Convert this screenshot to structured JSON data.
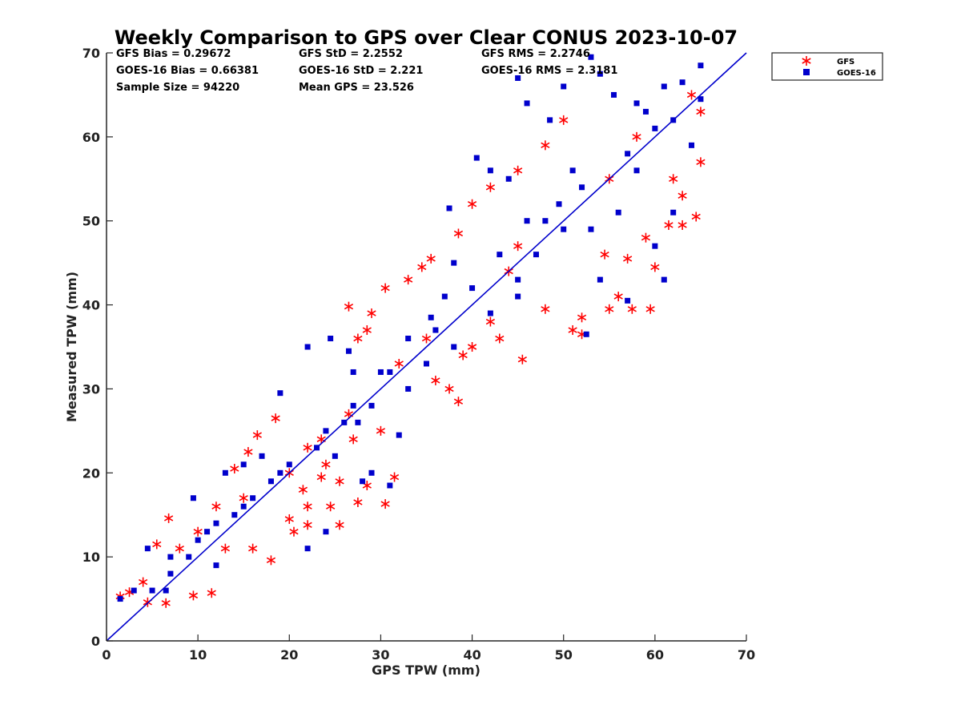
{
  "chart_data": {
    "type": "scatter",
    "title": "Weekly Comparison to GPS over Clear CONUS 2023-10-07",
    "xlabel": "GPS TPW (mm)",
    "ylabel": "Measured TPW (mm)",
    "xlim": [
      0,
      70
    ],
    "ylim": [
      0,
      70
    ],
    "xticks": [
      "0",
      "10",
      "20",
      "30",
      "40",
      "50",
      "60",
      "70"
    ],
    "yticks": [
      "0",
      "10",
      "20",
      "30",
      "40",
      "50",
      "60",
      "70"
    ],
    "grid": false,
    "legend_position": "outside-top-right",
    "stats": [
      [
        "GFS Bias = 0.29672",
        "GFS StD = 2.2552",
        "GFS RMS = 2.2746"
      ],
      [
        "GOES-16 Bias = 0.66381",
        "GOES-16 StD = 2.221",
        "GOES-16 RMS = 2.3181"
      ],
      [
        "Sample Size = 94220",
        "Mean GPS = 23.526",
        ""
      ]
    ],
    "reference_line": {
      "x": [
        0,
        70
      ],
      "y": [
        0,
        70
      ],
      "color": "#0000cc"
    },
    "series": [
      {
        "name": "GFS",
        "marker": "asterisk",
        "color": "#ff0000",
        "points": [
          [
            1.5,
            5.3
          ],
          [
            2.5,
            5.8
          ],
          [
            4.5,
            4.6
          ],
          [
            6.5,
            4.5
          ],
          [
            9.5,
            5.4
          ],
          [
            11.5,
            5.7
          ],
          [
            6.8,
            14.6
          ],
          [
            5.5,
            11.5
          ],
          [
            14,
            20.5
          ],
          [
            15.5,
            22.5
          ],
          [
            16.5,
            24.5
          ],
          [
            18.5,
            26.5
          ],
          [
            18,
            9.6
          ],
          [
            16,
            11
          ],
          [
            13,
            11
          ],
          [
            22,
            23
          ],
          [
            23.5,
            24
          ],
          [
            24,
            21
          ],
          [
            23.5,
            19.5
          ],
          [
            21.5,
            18
          ],
          [
            22,
            16
          ],
          [
            24.5,
            16
          ],
          [
            25.5,
            19
          ],
          [
            27.5,
            16.5
          ],
          [
            28.5,
            18.5
          ],
          [
            30.5,
            16.3
          ],
          [
            31.5,
            19.5
          ],
          [
            25.5,
            13.8
          ],
          [
            20,
            14.5
          ],
          [
            20.5,
            13
          ],
          [
            22,
            13.8
          ],
          [
            26.5,
            27
          ],
          [
            27.5,
            36
          ],
          [
            28.5,
            37
          ],
          [
            29,
            39
          ],
          [
            30.5,
            42
          ],
          [
            26.5,
            39.8
          ],
          [
            33,
            43
          ],
          [
            34.5,
            44.5
          ],
          [
            35.5,
            45.5
          ],
          [
            38.5,
            48.5
          ],
          [
            38.5,
            28.5
          ],
          [
            36,
            31
          ],
          [
            37.5,
            30
          ],
          [
            39,
            34
          ],
          [
            43,
            36
          ],
          [
            45.5,
            33.5
          ],
          [
            40,
            35
          ],
          [
            42,
            38
          ],
          [
            48,
            39.5
          ],
          [
            51,
            37
          ],
          [
            52,
            38.5
          ],
          [
            52,
            36.5
          ],
          [
            55,
            39.5
          ],
          [
            57.5,
            39.5
          ],
          [
            59.5,
            39.5
          ],
          [
            56,
            41
          ],
          [
            60,
            44.5
          ],
          [
            57,
            45.5
          ],
          [
            54.5,
            46
          ],
          [
            59,
            48
          ],
          [
            61.5,
            49.5
          ],
          [
            63,
            49.5
          ],
          [
            64.5,
            50.5
          ],
          [
            65,
            57
          ],
          [
            64,
            65
          ],
          [
            65,
            63
          ],
          [
            62,
            55
          ],
          [
            63,
            53
          ],
          [
            50,
            62
          ],
          [
            48,
            59
          ],
          [
            40,
            52
          ],
          [
            42,
            54
          ],
          [
            45,
            56
          ],
          [
            32,
            33
          ],
          [
            35,
            36
          ],
          [
            27,
            24
          ],
          [
            30,
            25
          ],
          [
            10,
            13
          ],
          [
            12,
            16
          ],
          [
            8,
            11
          ],
          [
            4,
            7
          ],
          [
            20,
            20
          ],
          [
            15,
            17
          ],
          [
            45,
            47
          ],
          [
            55,
            55
          ],
          [
            58,
            60
          ],
          [
            44,
            44
          ]
        ]
      },
      {
        "name": "GOES-16",
        "marker": "square",
        "color": "#0000cc",
        "points": [
          [
            1.5,
            5
          ],
          [
            3,
            6
          ],
          [
            4.5,
            11
          ],
          [
            6.5,
            6
          ],
          [
            7,
            10
          ],
          [
            9.5,
            17
          ],
          [
            12,
            9
          ],
          [
            13,
            20
          ],
          [
            15,
            21
          ],
          [
            17,
            22
          ],
          [
            19,
            29.5
          ],
          [
            22,
            35
          ],
          [
            24.5,
            36
          ],
          [
            24,
            13
          ],
          [
            22,
            11
          ],
          [
            26.5,
            34.5
          ],
          [
            27.5,
            26
          ],
          [
            28,
            19
          ],
          [
            29,
            20
          ],
          [
            31,
            18.5
          ],
          [
            32,
            24.5
          ],
          [
            30,
            32
          ],
          [
            33,
            36
          ],
          [
            35.5,
            38.5
          ],
          [
            37,
            41
          ],
          [
            38,
            45
          ],
          [
            37.5,
            51.5
          ],
          [
            40.5,
            57.5
          ],
          [
            42,
            56
          ],
          [
            44,
            55
          ],
          [
            45,
            67
          ],
          [
            46,
            64
          ],
          [
            48.5,
            62
          ],
          [
            50,
            66
          ],
          [
            53,
            69.5
          ],
          [
            54,
            67.5
          ],
          [
            55.5,
            65
          ],
          [
            58,
            64
          ],
          [
            59,
            63
          ],
          [
            61,
            66
          ],
          [
            63,
            66.5
          ],
          [
            65,
            68.5
          ],
          [
            65,
            64.5
          ],
          [
            64,
            59
          ],
          [
            58,
            56
          ],
          [
            52.5,
            36.5
          ],
          [
            54,
            43
          ],
          [
            57,
            40.5
          ],
          [
            61,
            43
          ],
          [
            60,
            47
          ],
          [
            62,
            51
          ],
          [
            49.5,
            52
          ],
          [
            53,
            49
          ],
          [
            56,
            51
          ],
          [
            38,
            35
          ],
          [
            42,
            39
          ],
          [
            45,
            43
          ],
          [
            47,
            46
          ],
          [
            50,
            49
          ],
          [
            45,
            41
          ],
          [
            33,
            30
          ],
          [
            35,
            33
          ],
          [
            29,
            28
          ],
          [
            26,
            26
          ],
          [
            24,
            25
          ],
          [
            20,
            21
          ],
          [
            18,
            19
          ],
          [
            16,
            17
          ],
          [
            14,
            15
          ],
          [
            11,
            13
          ],
          [
            9,
            10
          ],
          [
            7,
            8
          ],
          [
            5,
            6
          ],
          [
            10,
            12
          ],
          [
            12,
            14
          ],
          [
            15,
            16
          ],
          [
            19,
            20
          ],
          [
            23,
            23
          ],
          [
            27,
            28
          ],
          [
            31,
            32
          ],
          [
            36,
            37
          ],
          [
            40,
            42
          ],
          [
            48,
            50
          ],
          [
            52,
            54
          ],
          [
            57,
            58
          ],
          [
            60,
            61
          ],
          [
            62,
            62
          ],
          [
            27,
            32
          ],
          [
            25,
            22
          ],
          [
            43,
            46
          ],
          [
            46,
            50
          ],
          [
            51,
            56
          ]
        ]
      }
    ]
  }
}
